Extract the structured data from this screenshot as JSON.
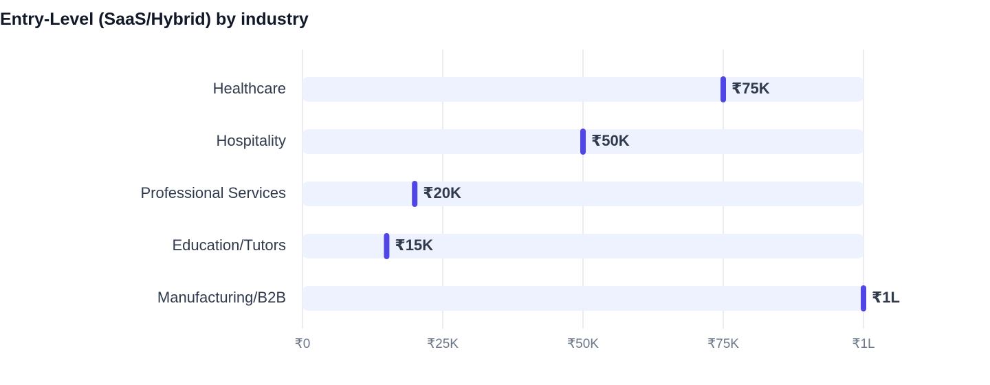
{
  "chart_data": {
    "type": "bar",
    "title": "Entry-Level (SaaS/Hybrid) by industry",
    "orientation": "horizontal",
    "categories": [
      "Healthcare",
      "Hospitality",
      "Professional Services",
      "Education/Tutors",
      "Manufacturing/B2B"
    ],
    "values": [
      75000,
      50000,
      20000,
      15000,
      100000
    ],
    "value_labels": [
      "₹75K",
      "₹50K",
      "₹20K",
      "₹15K",
      "₹1L"
    ],
    "xlim": [
      0,
      100000
    ],
    "x_ticks": [
      0,
      25000,
      50000,
      75000,
      100000
    ],
    "x_tick_labels": [
      "₹0",
      "₹25K",
      "₹50K",
      "₹75K",
      "₹1L"
    ],
    "grid": true,
    "legend": "none"
  },
  "colors": {
    "marker": "#4f46e5",
    "track": "#eef2fe",
    "grid": "#e3e6ec",
    "text": "#2f3a4c",
    "tick_text": "#6b7689",
    "title": "#111827"
  }
}
